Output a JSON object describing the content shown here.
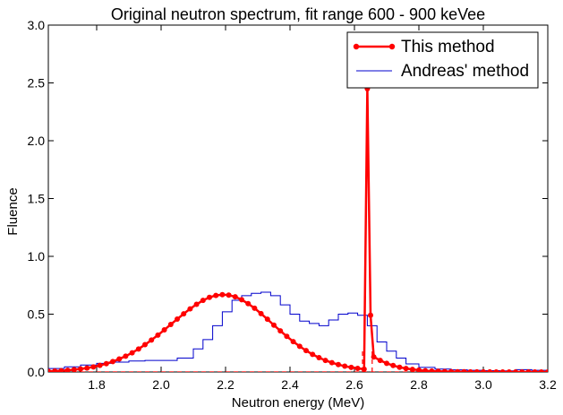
{
  "chart_data": {
    "type": "line",
    "title": "Original neutron spectrum, fit range 600 - 900 keVee",
    "xlabel": "Neutron energy (MeV)",
    "ylabel": "Fluence",
    "xlim": [
      1.65,
      3.2
    ],
    "ylim": [
      0,
      3.0
    ],
    "x_ticks": [
      "1.8",
      "2.0",
      "2.2",
      "2.4",
      "2.6",
      "2.8",
      "3.0",
      "3.2"
    ],
    "y_ticks": [
      "0.0",
      "0.5",
      "1.0",
      "1.5",
      "2.0",
      "2.5",
      "3.0"
    ],
    "legend_position": "top-right",
    "grid": false,
    "series": [
      {
        "name": "This method",
        "color": "#ff0000",
        "style": "line-with-markers",
        "x": [
          1.65,
          1.67,
          1.69,
          1.71,
          1.73,
          1.75,
          1.77,
          1.79,
          1.81,
          1.83,
          1.85,
          1.87,
          1.89,
          1.91,
          1.93,
          1.95,
          1.97,
          1.99,
          2.01,
          2.03,
          2.05,
          2.07,
          2.09,
          2.11,
          2.13,
          2.15,
          2.17,
          2.19,
          2.21,
          2.23,
          2.25,
          2.27,
          2.29,
          2.31,
          2.33,
          2.35,
          2.37,
          2.39,
          2.41,
          2.43,
          2.45,
          2.47,
          2.49,
          2.51,
          2.53,
          2.55,
          2.57,
          2.59,
          2.61,
          2.63,
          2.64,
          2.65,
          2.66,
          2.68,
          2.7,
          2.72,
          2.74,
          2.76,
          2.78,
          2.8,
          2.82,
          2.84,
          2.86,
          2.88,
          2.9,
          2.92,
          2.94,
          2.96,
          2.98,
          3.0,
          3.02,
          3.04,
          3.06,
          3.08,
          3.1,
          3.12,
          3.14,
          3.16,
          3.18,
          3.2
        ],
        "y": [
          0.006,
          0.008,
          0.011,
          0.015,
          0.02,
          0.026,
          0.034,
          0.044,
          0.057,
          0.072,
          0.09,
          0.112,
          0.137,
          0.166,
          0.199,
          0.236,
          0.276,
          0.319,
          0.364,
          0.411,
          0.457,
          0.503,
          0.546,
          0.585,
          0.619,
          0.645,
          0.662,
          0.669,
          0.665,
          0.65,
          0.625,
          0.591,
          0.551,
          0.505,
          0.456,
          0.405,
          0.356,
          0.308,
          0.263,
          0.222,
          0.185,
          0.152,
          0.124,
          0.1,
          0.08,
          0.064,
          0.05,
          0.04,
          0.031,
          0.024,
          2.45,
          0.49,
          0.13,
          0.1,
          0.075,
          0.056,
          0.041,
          0.03,
          0.022,
          0.016,
          0.011,
          0.008,
          0.006,
          0.004,
          0.003,
          0.002,
          0.0015,
          0.001,
          0.0008,
          0.0006,
          0.0005,
          0.0004,
          0.0003,
          0.0002,
          0.0002,
          0.0001,
          0.0001,
          0.0001,
          0.0001,
          0.0001
        ],
        "dashed_drops": [
          2.625,
          2.655
        ]
      },
      {
        "name": "Andreas' method",
        "color": "#0000cc",
        "style": "step",
        "x": [
          1.65,
          1.7,
          1.75,
          1.8,
          1.85,
          1.9,
          1.95,
          2.0,
          2.05,
          2.1,
          2.13,
          2.16,
          2.19,
          2.22,
          2.25,
          2.28,
          2.31,
          2.34,
          2.37,
          2.4,
          2.43,
          2.46,
          2.49,
          2.52,
          2.55,
          2.58,
          2.61,
          2.64,
          2.67,
          2.7,
          2.73,
          2.76,
          2.8,
          2.85,
          2.9,
          2.95,
          3.0,
          3.05,
          3.1,
          3.15,
          3.2
        ],
        "y": [
          0.03,
          0.045,
          0.06,
          0.075,
          0.085,
          0.095,
          0.1,
          0.1,
          0.12,
          0.2,
          0.28,
          0.4,
          0.52,
          0.62,
          0.66,
          0.68,
          0.69,
          0.66,
          0.58,
          0.5,
          0.44,
          0.42,
          0.4,
          0.45,
          0.5,
          0.51,
          0.49,
          0.4,
          0.26,
          0.18,
          0.12,
          0.07,
          0.04,
          0.025,
          0.018,
          0.015,
          0.012,
          0.01,
          0.02,
          0.015,
          0.015
        ]
      }
    ]
  }
}
